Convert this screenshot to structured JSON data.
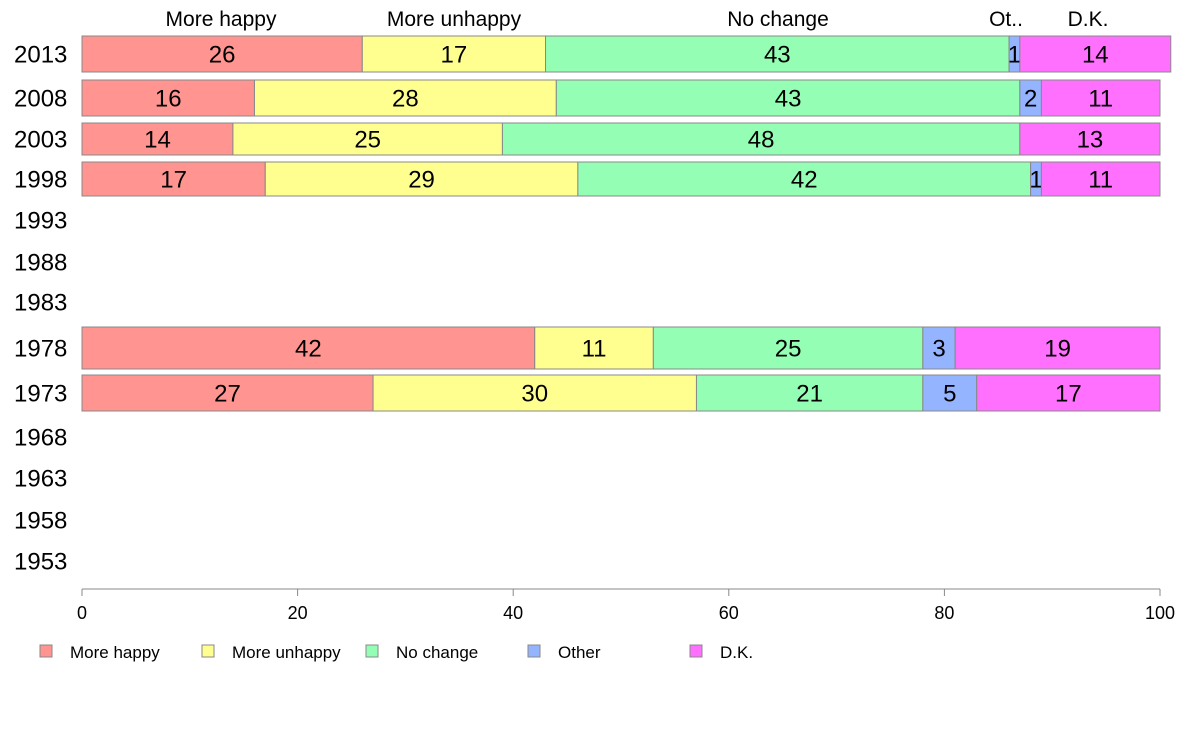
{
  "chart_data": {
    "type": "bar",
    "orientation": "horizontal",
    "stacked": true,
    "xlim": [
      0,
      100
    ],
    "x_ticks": [
      0,
      20,
      40,
      60,
      80,
      100
    ],
    "categories": [
      "2013",
      "2008",
      "2003",
      "1998",
      "1993",
      "1988",
      "1983",
      "1978",
      "1973",
      "1968",
      "1963",
      "1958",
      "1953"
    ],
    "top_labels": [
      "More happy",
      "More unhappy",
      "No change",
      "Ot..",
      "D.K."
    ],
    "legend_position": "bottom",
    "grid": false,
    "series": [
      {
        "name": "More happy",
        "color": "#ff9490",
        "values": [
          26,
          16,
          14,
          17,
          null,
          null,
          null,
          42,
          27,
          null,
          null,
          null,
          null
        ]
      },
      {
        "name": "More unhappy",
        "color": "#ffff90",
        "values": [
          17,
          28,
          25,
          29,
          null,
          null,
          null,
          11,
          30,
          null,
          null,
          null,
          null
        ]
      },
      {
        "name": "No change",
        "color": "#94ffb4",
        "values": [
          43,
          43,
          48,
          42,
          null,
          null,
          null,
          25,
          21,
          null,
          null,
          null,
          null
        ]
      },
      {
        "name": "Other",
        "color": "#94b4ff",
        "values": [
          1,
          2,
          0,
          1,
          null,
          null,
          null,
          3,
          5,
          null,
          null,
          null,
          null
        ]
      },
      {
        "name": "D.K.",
        "color": "#ff70ff",
        "values": [
          14,
          11,
          13,
          11,
          null,
          null,
          null,
          19,
          17,
          null,
          null,
          null,
          null
        ]
      }
    ]
  }
}
